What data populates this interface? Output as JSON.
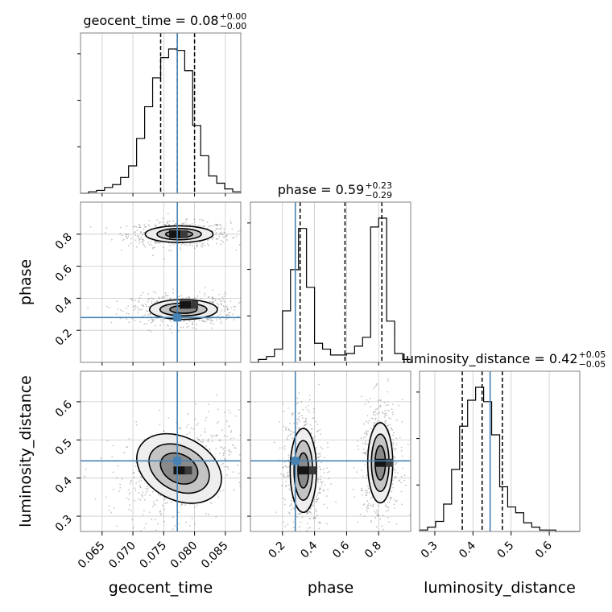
{
  "chart_data": {
    "type": "corner",
    "parameters": [
      "geocent_time",
      "phase",
      "luminosity_distance"
    ],
    "truth_color": "#4682b4",
    "truths": {
      "geocent_time": 0.0772,
      "phase": 0.28,
      "luminosity_distance": 0.445
    },
    "axes": {
      "geocent_time": {
        "lim": [
          0.0615,
          0.0875
        ],
        "ticks": [
          "0.065",
          "0.070",
          "0.075",
          "0.080",
          "0.085"
        ],
        "tick_values": [
          0.065,
          0.07,
          0.075,
          0.08,
          0.085
        ]
      },
      "phase": {
        "lim": [
          0.0,
          1.0
        ],
        "ticks": [
          "0.2",
          "0.4",
          "0.6",
          "0.8"
        ],
        "tick_values": [
          0.2,
          0.4,
          0.6,
          0.8
        ]
      },
      "luminosity_distance": {
        "lim": [
          0.26,
          0.68
        ],
        "ticks": [
          "0.3",
          "0.4",
          "0.5",
          "0.6"
        ],
        "tick_values": [
          0.3,
          0.4,
          0.5,
          0.6
        ]
      }
    },
    "titles": {
      "geocent_time": {
        "name": "geocent_time",
        "value": "0.08",
        "plus": "+0.00",
        "minus": "−0.00"
      },
      "phase": {
        "name": "phase",
        "value": "0.59",
        "plus": "+0.23",
        "minus": "−0.29"
      },
      "luminosity_distance": {
        "name": "luminosity_distance",
        "value": "0.42",
        "plus": "+0.05",
        "minus": "−0.05"
      }
    },
    "axis_labels": {
      "x": [
        "geocent_time",
        "phase",
        "luminosity_distance"
      ],
      "y": [
        "phase",
        "luminosity_distance"
      ]
    },
    "histograms": {
      "geocent_time": {
        "bins": [
          0.0615,
          0.0628,
          0.0641,
          0.0654,
          0.0667,
          0.068,
          0.0693,
          0.0706,
          0.0719,
          0.0732,
          0.0745,
          0.0758,
          0.0771,
          0.0784,
          0.0797,
          0.081,
          0.0823,
          0.0836,
          0.0849,
          0.0862,
          0.0875
        ],
        "counts": [
          0,
          1,
          2,
          4,
          6,
          11,
          19,
          38,
          60,
          80,
          94,
          100,
          99,
          85,
          47,
          26,
          12,
          7,
          3,
          1
        ],
        "quantiles": [
          0.0745,
          0.0772,
          0.08
        ]
      },
      "phase": {
        "bins": [
          0.0,
          0.05,
          0.1,
          0.15,
          0.2,
          0.25,
          0.3,
          0.35,
          0.4,
          0.45,
          0.5,
          0.55,
          0.6,
          0.65,
          0.7,
          0.75,
          0.8,
          0.85,
          0.9,
          0.95,
          1.0
        ],
        "counts": [
          0,
          2,
          4,
          9,
          35,
          63,
          91,
          51,
          13,
          9,
          5,
          5,
          6,
          11,
          17,
          92,
          98,
          28,
          6,
          2
        ],
        "quantiles": [
          0.31,
          0.59,
          0.82
        ]
      },
      "luminosity_distance": {
        "bins": [
          0.26,
          0.281,
          0.302,
          0.323,
          0.344,
          0.365,
          0.386,
          0.407,
          0.428,
          0.449,
          0.47,
          0.491,
          0.512,
          0.533,
          0.554,
          0.575,
          0.596,
          0.617,
          0.638,
          0.659,
          0.68
        ],
        "counts": [
          1,
          3,
          7,
          19,
          43,
          73,
          91,
          100,
          90,
          67,
          31,
          17,
          13,
          6,
          3,
          1,
          1,
          0,
          0,
          0
        ],
        "quantiles": [
          0.372,
          0.424,
          0.477
        ]
      }
    },
    "contours_2d": {
      "geocent_time_vs_phase": {
        "modes": [
          {
            "center": [
              0.0775,
              0.8
            ],
            "levels": [
              [
                0.0055,
                0.052
              ],
              [
                0.0036,
                0.035
              ],
              [
                0.0022,
                0.021
              ]
            ],
            "peak": [
              0.0768,
              0.8
            ]
          },
          {
            "center": [
              0.0782,
              0.33
            ],
            "levels": [
              [
                0.0055,
                0.062
              ],
              [
                0.0038,
                0.04
              ],
              [
                0.0022,
                0.024
              ]
            ],
            "peak": [
              0.0785,
              0.36
            ]
          }
        ]
      },
      "geocent_time_vs_luminosity_distance": {
        "modes": [
          {
            "center": [
              0.0775,
              0.425
            ],
            "levels": [
              [
                0.0073,
                0.082
              ],
              [
                0.0052,
                0.058
              ],
              [
                0.0032,
                0.037
              ]
            ],
            "peak": [
              0.0775,
              0.42
            ],
            "tilt_deg": -28
          }
        ]
      },
      "phase_vs_luminosity_distance": {
        "modes": [
          {
            "center": [
              0.33,
              0.42
            ],
            "levels": [
              [
                0.082,
                0.11
              ],
              [
                0.058,
                0.078
              ],
              [
                0.034,
                0.046
              ]
            ],
            "peak": [
              0.33,
              0.42
            ]
          },
          {
            "center": [
              0.81,
              0.44
            ],
            "levels": [
              [
                0.078,
                0.105
              ],
              [
                0.055,
                0.075
              ],
              [
                0.032,
                0.045
              ]
            ],
            "peak": [
              0.81,
              0.44
            ]
          }
        ]
      }
    }
  }
}
